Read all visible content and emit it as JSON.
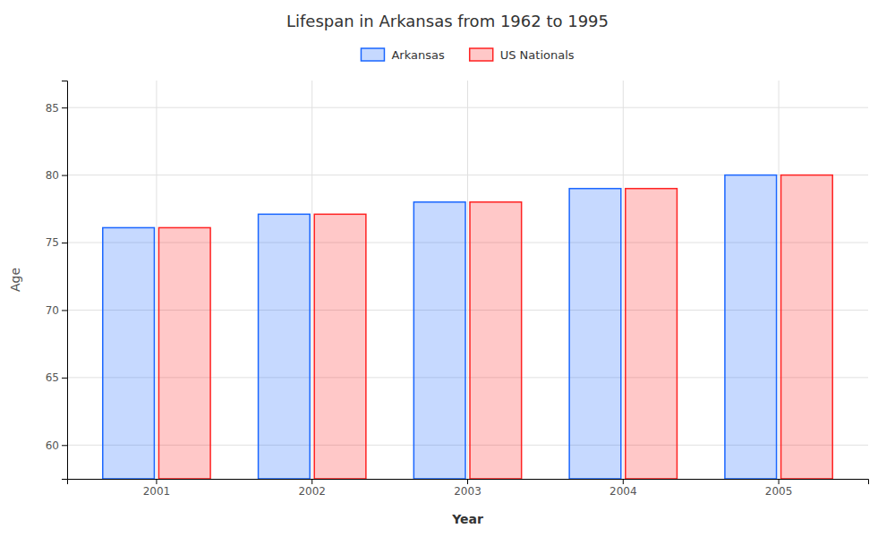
{
  "chart_data": {
    "type": "bar",
    "title": "Lifespan in Arkansas from 1962 to 1995",
    "x_label": "Year",
    "y_label": "Age",
    "categories": [
      "2001",
      "2002",
      "2003",
      "2004",
      "2005"
    ],
    "series": [
      {
        "name": "Arkansas",
        "color": "#1a66ff",
        "values": [
          76.1,
          77.1,
          78.0,
          79.0,
          80.0
        ]
      },
      {
        "name": "US Nationals",
        "color": "#ff2222",
        "values": [
          76.1,
          77.1,
          78.0,
          79.0,
          80.0
        ]
      }
    ],
    "ylim": [
      57.5,
      87
    ],
    "yticks": [
      60,
      65,
      70,
      75,
      80,
      85
    ],
    "grid": true,
    "legend": "top"
  }
}
